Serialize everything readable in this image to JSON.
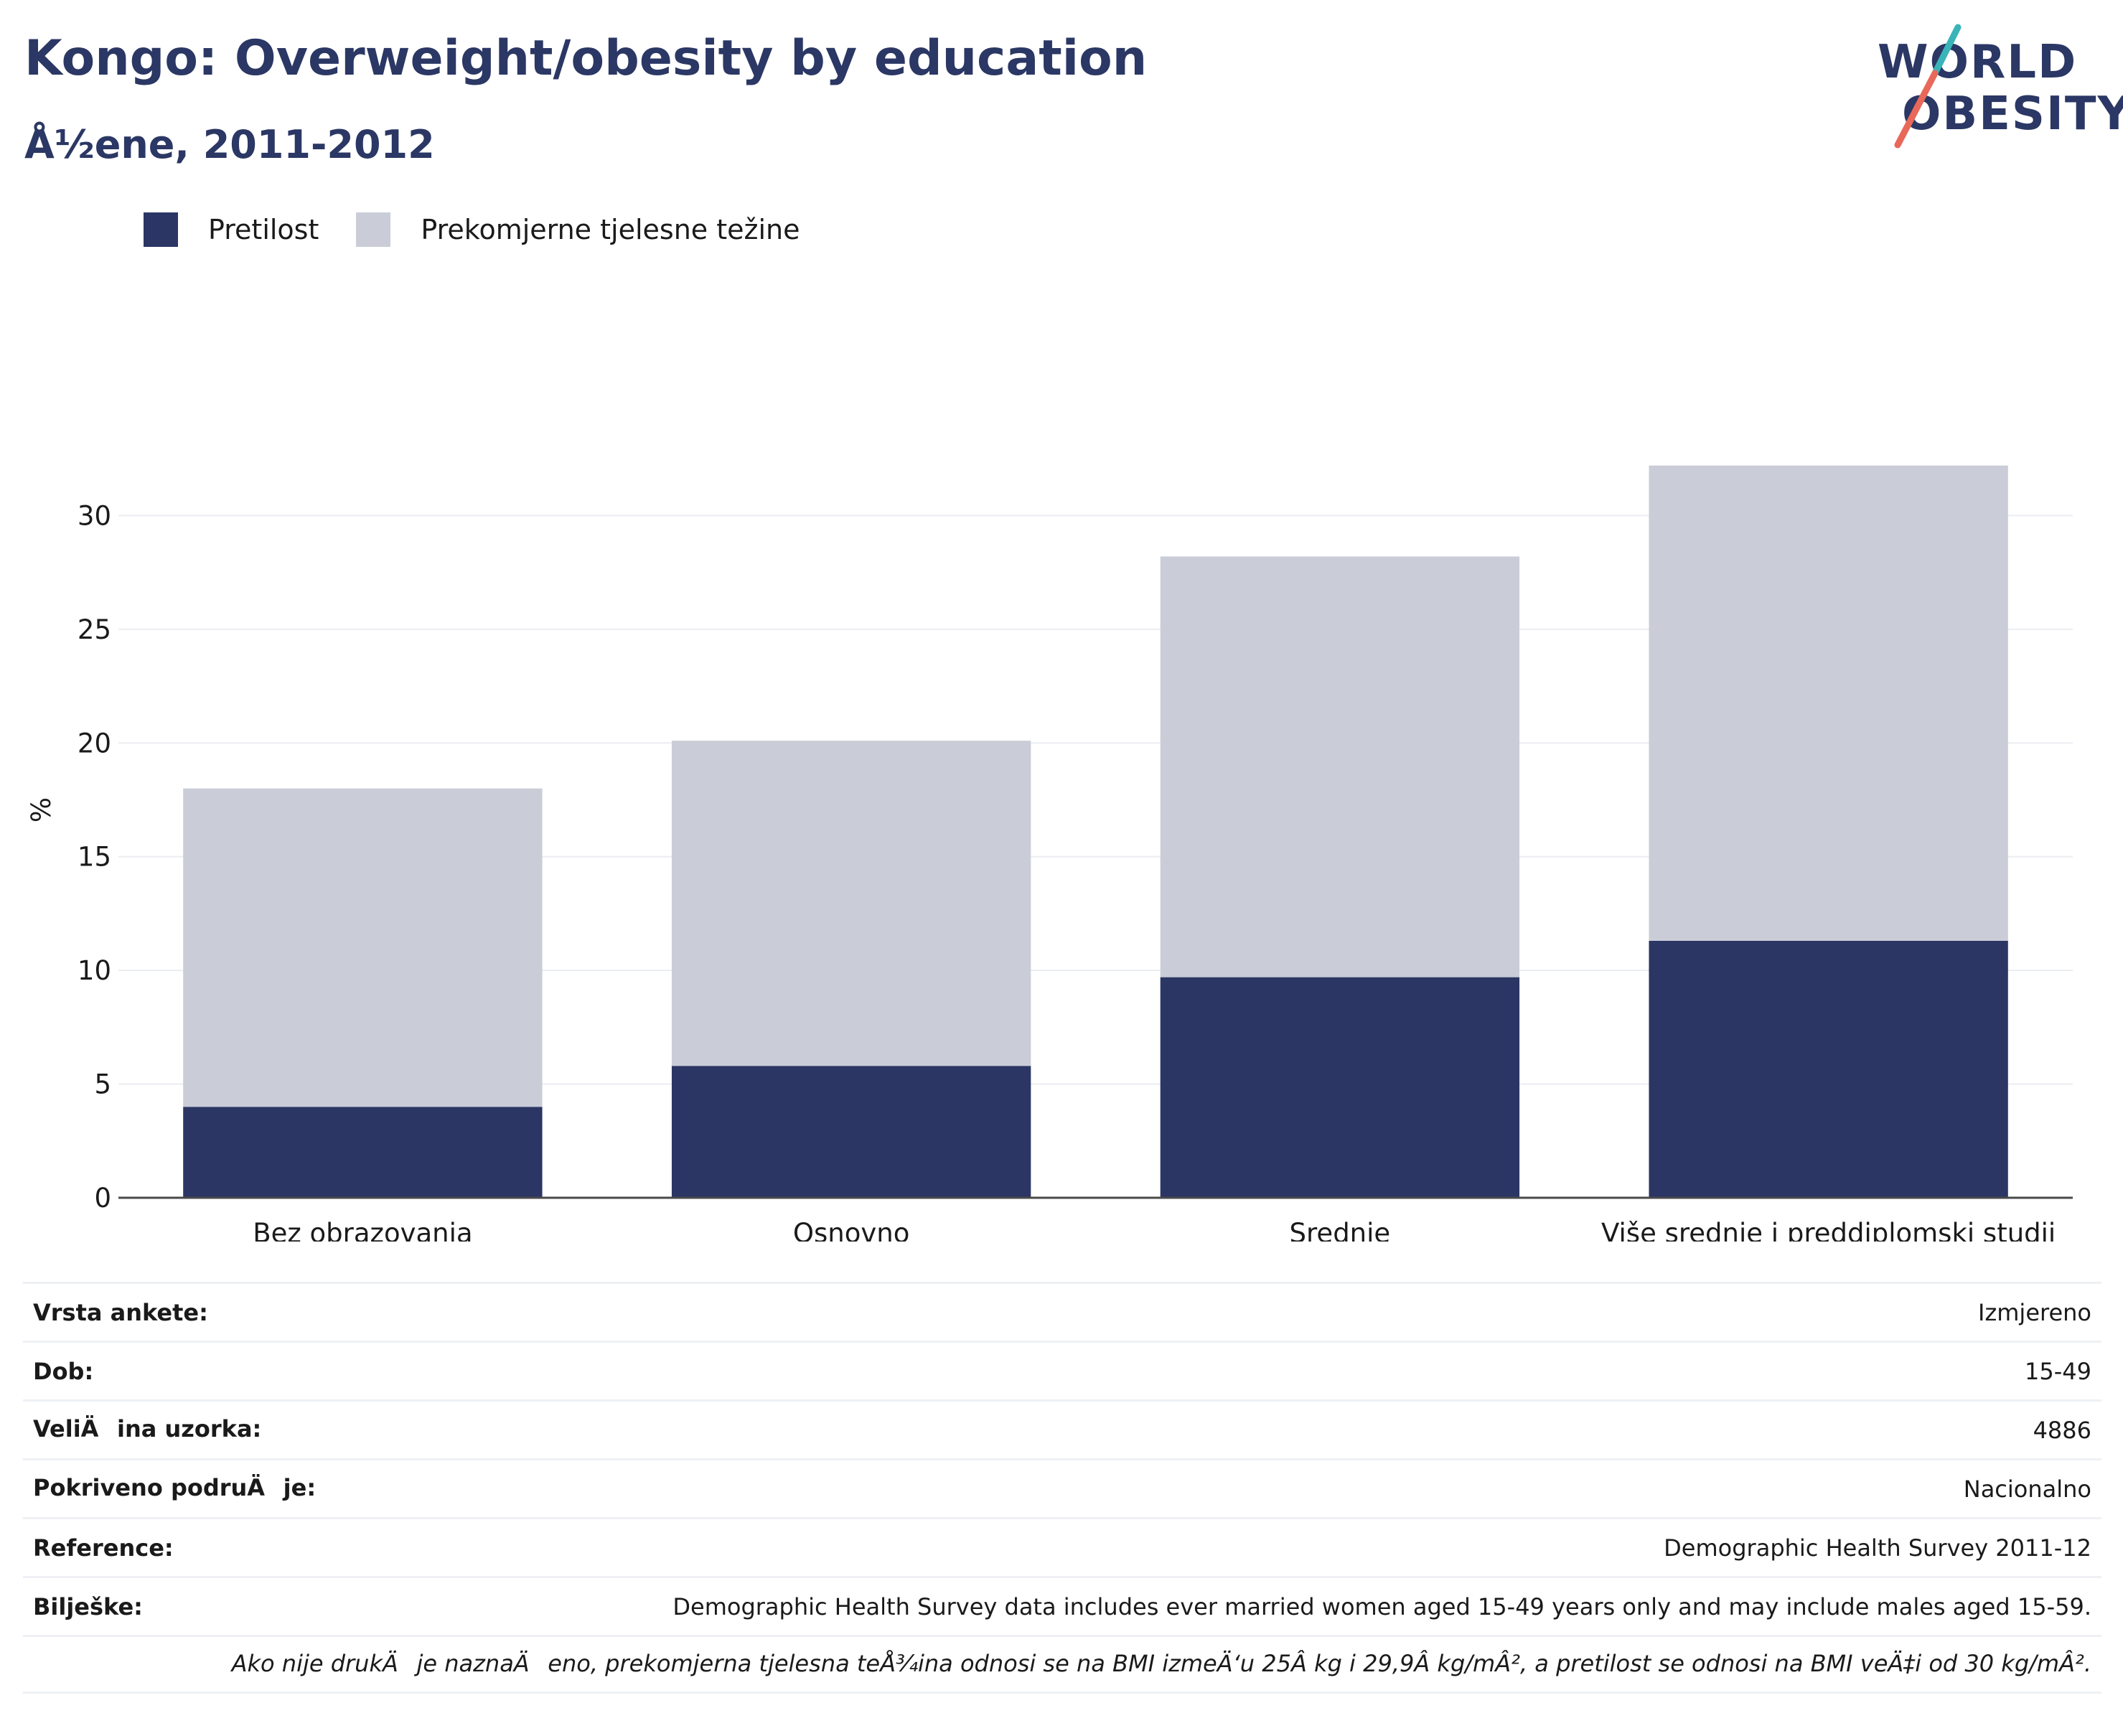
{
  "title": "Kongo: Overweight/obesity by education",
  "subtitle": "Å½ene, 2011-2012",
  "logo": {
    "line1": "WORLD",
    "line2": "OBESITY",
    "accent_teal": "#3ab4b8",
    "accent_red": "#e8685a"
  },
  "legend": [
    {
      "label": "Pretilost",
      "color": "#2b3664"
    },
    {
      "label": "Prekomjerne tjelesne težine",
      "color": "#cacdd8"
    }
  ],
  "chart_data": {
    "type": "bar",
    "stacked": true,
    "categories": [
      "Bez obrazovanja",
      "Osnovno",
      "Srednje",
      "Više srednje i preddiplomski studij"
    ],
    "series": [
      {
        "name": "Pretilost",
        "values": [
          4.0,
          5.8,
          9.7,
          11.3
        ],
        "color": "#2b3664"
      },
      {
        "name": "Prekomjerne tjelesne težine",
        "values": [
          14.0,
          14.3,
          18.5,
          20.9
        ],
        "color": "#cacdd8"
      }
    ],
    "ylabel": "%",
    "xlabel": "",
    "ylim": [
      0,
      35
    ],
    "yticks": [
      0,
      5,
      10,
      15,
      20,
      25,
      30
    ],
    "grid": true,
    "legend_position": "top-left"
  },
  "info": [
    {
      "key": "Vrsta ankete:",
      "value": "Izmjereno"
    },
    {
      "key": "Dob:",
      "value": "15-49"
    },
    {
      "key": "VeliÄina uzorka:",
      "value": "4886"
    },
    {
      "key": "Pokriveno podruÄje:",
      "value": "Nacionalno"
    },
    {
      "key": "Reference:",
      "value": "Demographic Health Survey 2011-12"
    },
    {
      "key": "Bilješke:",
      "value": "Demographic Health Survey data includes ever married women aged 15-49 years only and may include males aged 15-59."
    }
  ],
  "footnote": "Ako nije drukÄje naznaÄeno, prekomjerna tjelesna teÅ¾ina odnosi se na BMI izmeÄ‘u 25Â kg i 29,9Â kg/mÂ², a pretilost se odnosi na BMI veÄ‡i od 30 kg/mÂ²."
}
